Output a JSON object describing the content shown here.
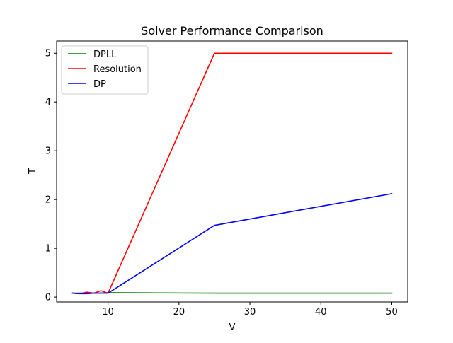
{
  "chart_data": {
    "type": "line",
    "title": "Solver Performance Comparison",
    "xlabel": "V",
    "ylabel": "T",
    "xlim": [
      2.75,
      52.25
    ],
    "ylim": [
      -0.1,
      5.25
    ],
    "xticks": [
      10,
      20,
      30,
      40,
      50
    ],
    "yticks": [
      0,
      1,
      2,
      3,
      4,
      5
    ],
    "grid": false,
    "legend": "top-left",
    "x": [
      5,
      6,
      7,
      8,
      9,
      10,
      25,
      50
    ],
    "series": [
      {
        "name": "DPLL",
        "color": "#008000",
        "values": [
          0.08,
          0.08,
          0.08,
          0.08,
          0.08,
          0.09,
          0.08,
          0.08
        ]
      },
      {
        "name": "Resolution",
        "color": "#ff0000",
        "values": [
          0.08,
          0.07,
          0.1,
          0.08,
          0.13,
          0.08,
          5.0,
          5.0
        ]
      },
      {
        "name": "DP",
        "color": "#0000ff",
        "values": [
          0.08,
          0.07,
          0.07,
          0.08,
          0.08,
          0.08,
          1.47,
          2.12
        ]
      }
    ]
  }
}
